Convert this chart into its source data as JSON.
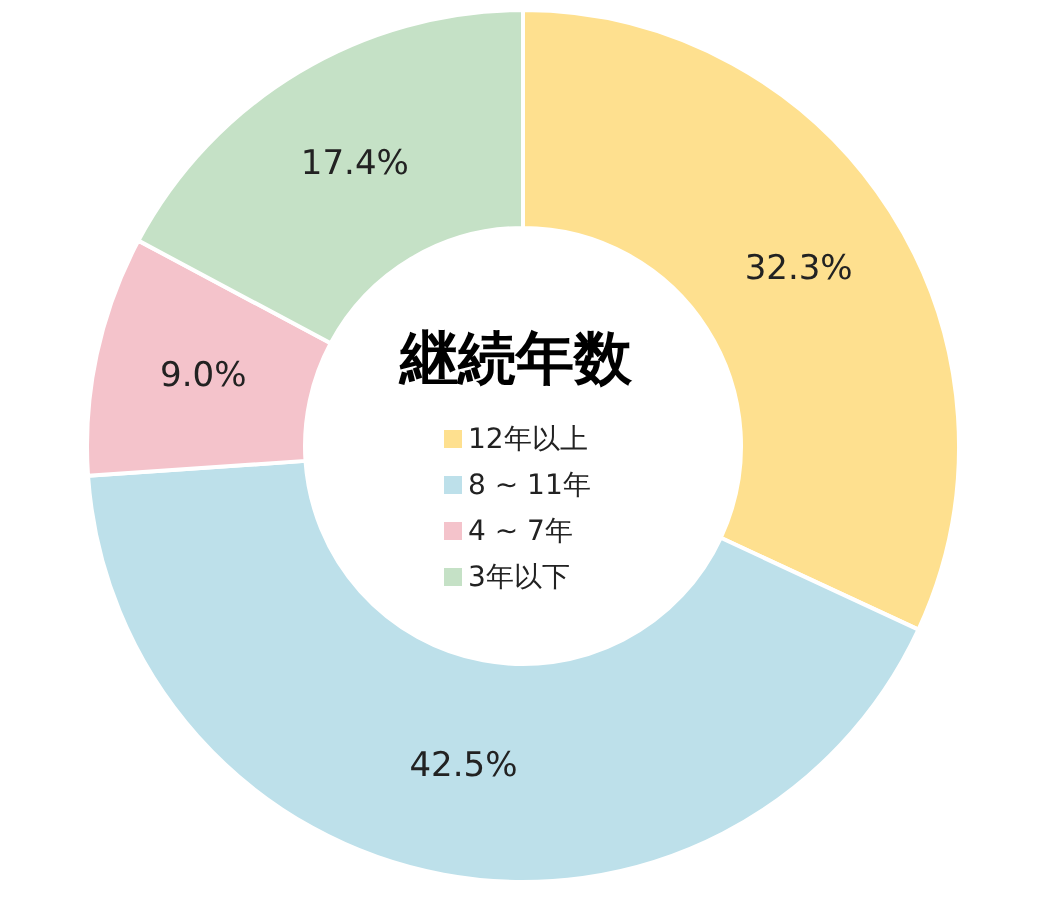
{
  "chart_data": {
    "type": "donut",
    "title": "継続年数",
    "categories": [
      "12年以上",
      "8 ~ 11年",
      "4 ~ 7年",
      "3年以下"
    ],
    "values": [
      32.3,
      42.5,
      9.0,
      17.4
    ],
    "colors": [
      "#fee08f",
      "#bde0ea",
      "#f4c3cb",
      "#c5e1c6"
    ],
    "value_labels": [
      "32.3%",
      "42.5%",
      "9.0%",
      "17.4%"
    ],
    "legend": "center"
  }
}
